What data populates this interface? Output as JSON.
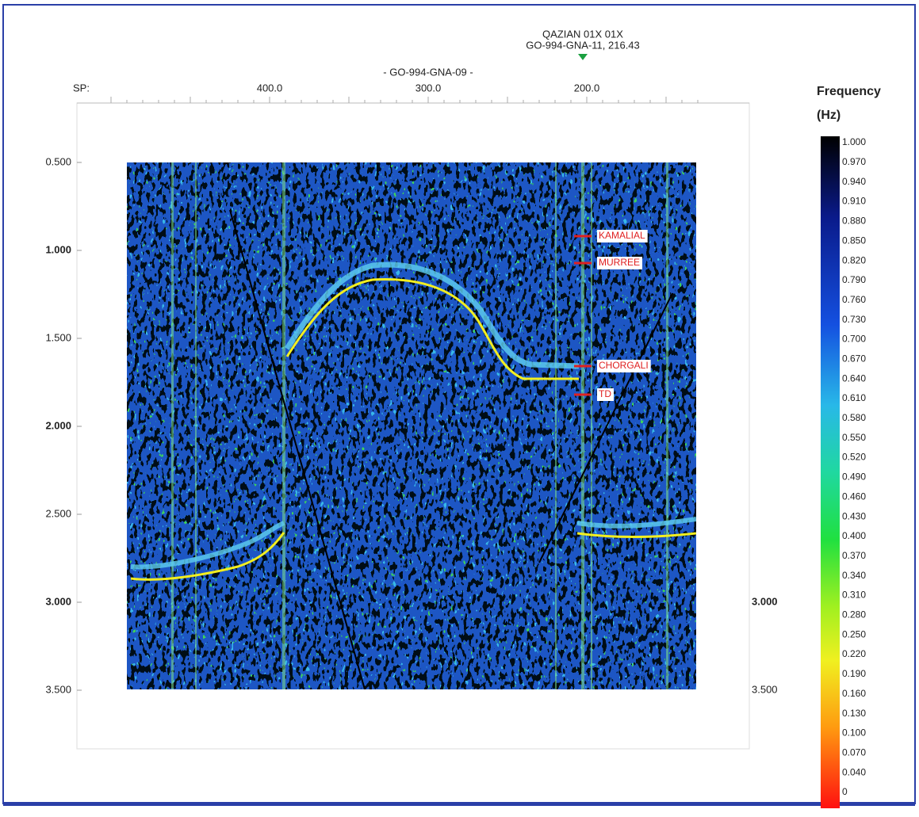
{
  "well": {
    "name_top": "QAZIAN 01X 01X",
    "name": "GO-994-GNA-11, 216.43"
  },
  "line_name": "- GO-994-GNA-09 -",
  "sp_axis": {
    "label": "SP:",
    "ticks": [
      "400.0",
      "300.0",
      "200.0"
    ]
  },
  "time_axis": {
    "left_ticks": [
      "0.500",
      "1.000",
      "1.500",
      "2.000",
      "2.500",
      "3.000",
      "3.500"
    ],
    "right_ticks": [
      "3.000",
      "3.500"
    ]
  },
  "markers": [
    "KAMALIAL",
    "MURREE",
    "CHORGALI",
    "TD"
  ],
  "colorbar": {
    "title": [
      "Frequency",
      "(Hz)"
    ],
    "labels": [
      "1.000",
      "0.970",
      "0.940",
      "0.910",
      "0.880",
      "0.850",
      "0.820",
      "0.790",
      "0.760",
      "0.730",
      "0.700",
      "0.670",
      "0.640",
      "0.610",
      "0.580",
      "0.550",
      "0.520",
      "0.490",
      "0.460",
      "0.430",
      "0.400",
      "0.370",
      "0.340",
      "0.310",
      "0.280",
      "0.250",
      "0.220",
      "0.190",
      "0.160",
      "0.130",
      "0.100",
      "0.070",
      "0.040",
      "0"
    ]
  }
}
